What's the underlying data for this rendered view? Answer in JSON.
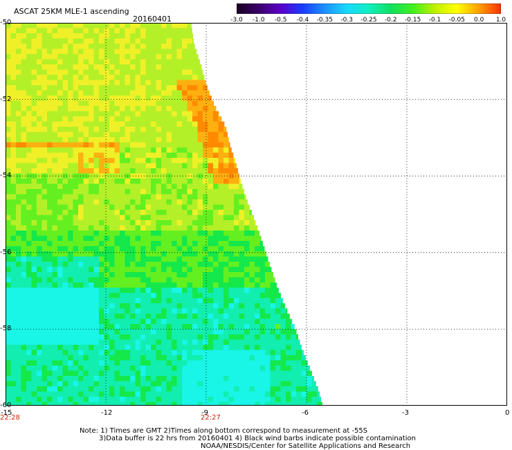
{
  "header": {
    "title": "ASCAT 25KM MLE-1 ascending",
    "date": "20160401"
  },
  "colorbar": {
    "labels": [
      "-3.0",
      "-1.0",
      "-0.5",
      "-0.4",
      "-0.35",
      "-0.3",
      "-0.25",
      "-0.2",
      "-0.15",
      "-0.1",
      "-0.05",
      "0.0",
      "1.0"
    ],
    "colors": [
      "#1a0020",
      "#3a006a",
      "#5a00c8",
      "#1a3cff",
      "#1e90ff",
      "#18d8ff",
      "#10f0c0",
      "#10e060",
      "#40f020",
      "#c0f000",
      "#ffff00",
      "#ffa000",
      "#ff3000"
    ]
  },
  "map": {
    "lat_ticks": [
      "-50",
      "-52",
      "-54",
      "-56",
      "-58",
      "-60"
    ],
    "lon_ticks": [
      "-15",
      "-12",
      "-9",
      "-6",
      "-3",
      "0"
    ],
    "lat_range": [
      -60,
      -50
    ],
    "lon_range": [
      -15,
      0
    ],
    "times": [
      {
        "label": "22:28",
        "lon": -15
      },
      {
        "label": "22:27",
        "lon": -9
      }
    ]
  },
  "footer": {
    "line1": "Note: 1) Times are GMT 2)Times along bottom correspond to measurement at -55S",
    "line2": "3)Data buffer is 22 hrs from 20160401 4) Black wind barbs indicate possible contamination",
    "line3": "NOAA/NESDIS/Center for Satellite Applications and Research"
  }
}
